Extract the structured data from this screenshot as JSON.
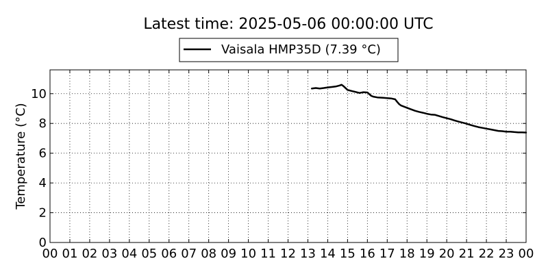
{
  "chart_data": {
    "type": "line",
    "title": "Latest time: 2025-05-06 00:00:00 UTC",
    "xlabel": "",
    "ylabel": "Temperature (°C)",
    "xlim": [
      0,
      24
    ],
    "ylim": [
      0,
      11.6
    ],
    "x_tick_values": [
      0,
      1,
      2,
      3,
      4,
      5,
      6,
      7,
      8,
      9,
      10,
      11,
      12,
      13,
      14,
      15,
      16,
      17,
      18,
      19,
      20,
      21,
      22,
      23,
      24
    ],
    "x_tick_labels": [
      "00",
      "01",
      "02",
      "03",
      "04",
      "05",
      "06",
      "07",
      "08",
      "09",
      "10",
      "11",
      "12",
      "13",
      "14",
      "15",
      "16",
      "17",
      "18",
      "19",
      "20",
      "21",
      "22",
      "23",
      "00"
    ],
    "y_ticks": [
      0,
      2,
      4,
      6,
      8,
      10
    ],
    "grid": true,
    "legend_position": "top-center",
    "series": [
      {
        "name": "Vaisala HMP35D (7.39 °C)",
        "color": "#000000",
        "x": [
          13.2,
          13.4,
          13.6,
          13.8,
          14.0,
          14.2,
          14.4,
          14.6,
          14.7,
          14.8,
          15.0,
          15.2,
          15.4,
          15.6,
          15.8,
          16.0,
          16.2,
          16.3,
          16.5,
          16.8,
          17.0,
          17.2,
          17.4,
          17.5,
          17.6,
          17.7,
          17.8,
          18.0,
          18.2,
          18.4,
          18.6,
          18.8,
          19.0,
          19.2,
          19.4,
          19.6,
          19.8,
          20.0,
          20.2,
          20.4,
          20.6,
          20.8,
          21.0,
          21.2,
          21.4,
          21.6,
          21.8,
          22.0,
          22.2,
          22.4,
          22.6,
          22.8,
          23.0,
          23.2,
          23.4,
          23.6,
          23.8,
          24.0
        ],
        "values": [
          10.35,
          10.38,
          10.35,
          10.38,
          10.42,
          10.45,
          10.48,
          10.55,
          10.6,
          10.5,
          10.25,
          10.18,
          10.12,
          10.05,
          10.1,
          10.08,
          9.85,
          9.8,
          9.75,
          9.72,
          9.7,
          9.68,
          9.62,
          9.45,
          9.3,
          9.2,
          9.15,
          9.05,
          8.95,
          8.85,
          8.78,
          8.72,
          8.65,
          8.6,
          8.58,
          8.5,
          8.42,
          8.35,
          8.28,
          8.2,
          8.12,
          8.05,
          7.98,
          7.9,
          7.82,
          7.75,
          7.7,
          7.65,
          7.6,
          7.55,
          7.5,
          7.48,
          7.45,
          7.45,
          7.42,
          7.4,
          7.4,
          7.39
        ]
      }
    ]
  }
}
